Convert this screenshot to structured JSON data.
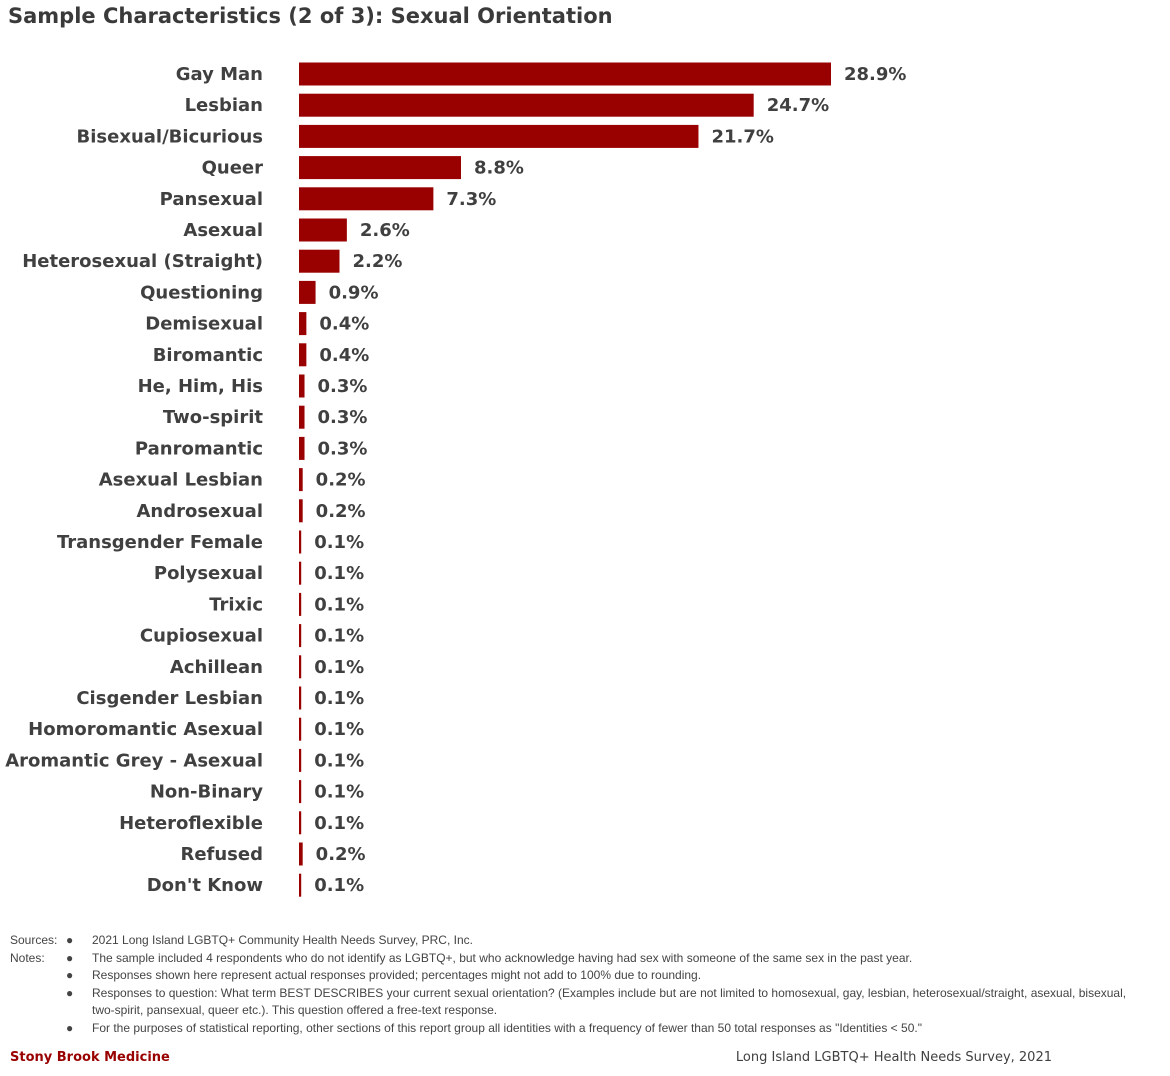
{
  "title": "Sample Characteristics (2 of 3): Sexual Orientation",
  "chart_data": {
    "type": "bar",
    "orientation": "horizontal",
    "categories": [
      "Gay Man",
      "Lesbian",
      "Bisexual/Bicurious",
      "Queer",
      "Pansexual",
      "Asexual",
      "Heterosexual (Straight)",
      "Questioning",
      "Demisexual",
      "Biromantic",
      "He, Him, His",
      "Two-spirit",
      "Panromantic",
      "Asexual Lesbian",
      "Androsexual",
      "Transgender Female",
      "Polysexual",
      "Trixic",
      "Cupiosexual",
      "Achillean",
      "Cisgender Lesbian",
      "Homoromantic Asexual",
      "Aromantic Grey - Asexual",
      "Non-Binary",
      "Heteroflexible",
      "Refused",
      "Don't Know"
    ],
    "values": [
      28.9,
      24.7,
      21.7,
      8.8,
      7.3,
      2.6,
      2.2,
      0.9,
      0.4,
      0.4,
      0.3,
      0.3,
      0.3,
      0.2,
      0.2,
      0.1,
      0.1,
      0.1,
      0.1,
      0.1,
      0.1,
      0.1,
      0.1,
      0.1,
      0.1,
      0.2,
      0.1
    ],
    "labels": [
      "28.9%",
      "24.7%",
      "21.7%",
      "8.8%",
      "7.3%",
      "2.6%",
      "2.2%",
      "0.9%",
      "0.4%",
      "0.4%",
      "0.3%",
      "0.3%",
      "0.3%",
      "0.2%",
      "0.2%",
      "0.1%",
      "0.1%",
      "0.1%",
      "0.1%",
      "0.1%",
      "0.1%",
      "0.1%",
      "0.1%",
      "0.1%",
      "0.1%",
      "0.2%",
      "0.1%"
    ],
    "bar_color": "#990000",
    "xlim": [
      0,
      30
    ],
    "grid": false
  },
  "notes": {
    "sources_label": "Sources:",
    "notes_label": "Notes:",
    "bullet": "●",
    "source_text": "2021 Long Island LGBTQ+ Community Health Needs Survey, PRC, Inc.",
    "items": [
      "The sample included 4 respondents who do not identify as LGBTQ+, but who acknowledge having had sex with someone of the same sex in the past year.",
      "Responses shown here represent actual responses provided; percentages might not add to 100% due to rounding.",
      "Responses to question: What term BEST DESCRIBES your current sexual orientation? (Examples include but are not limited to homosexual, gay, lesbian, heterosexual/straight, asexual, bisexual, two-spirit, pansexual, queer etc.). This question offered a free-text response.",
      "For the purposes of statistical reporting, other sections of this report group all identities with a frequency of fewer than 50 total responses as \"Identities < 50.\""
    ]
  },
  "footer": {
    "left": "Stony Brook Medicine",
    "right": "Long Island LGBTQ+ Health Needs Survey, 2021"
  }
}
